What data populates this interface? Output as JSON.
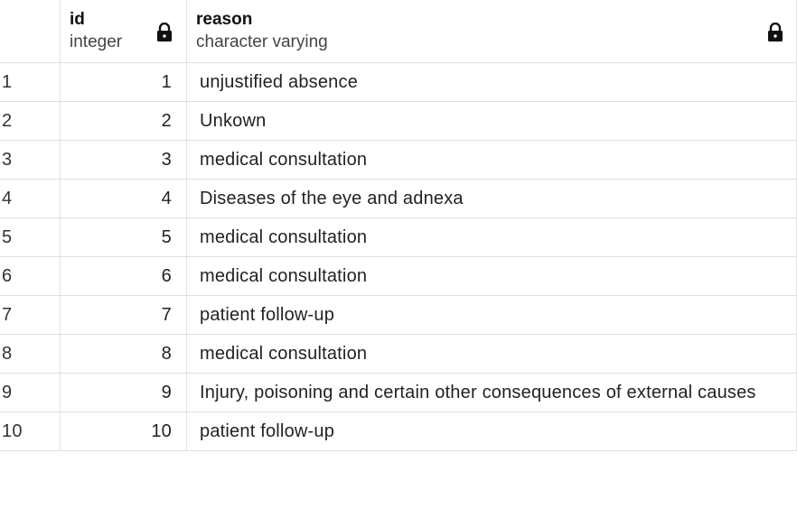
{
  "columns": {
    "id": {
      "name": "id",
      "type": "integer",
      "icon": "lock-icon"
    },
    "reason": {
      "name": "reason",
      "type": "character varying",
      "icon": "lock-icon"
    }
  },
  "rows": [
    {
      "rownum": "1",
      "id": "1",
      "reason": "unjustified absence"
    },
    {
      "rownum": "2",
      "id": "2",
      "reason": "Unkown"
    },
    {
      "rownum": "3",
      "id": "3",
      "reason": "medical consultation"
    },
    {
      "rownum": "4",
      "id": "4",
      "reason": "Diseases of the eye and adnexa"
    },
    {
      "rownum": "5",
      "id": "5",
      "reason": "medical consultation"
    },
    {
      "rownum": "6",
      "id": "6",
      "reason": "medical consultation"
    },
    {
      "rownum": "7",
      "id": "7",
      "reason": "patient follow-up"
    },
    {
      "rownum": "8",
      "id": "8",
      "reason": "medical consultation"
    },
    {
      "rownum": "9",
      "id": "9",
      "reason": "Injury, poisoning and certain other consequences of external causes"
    },
    {
      "rownum": "10",
      "id": "10",
      "reason": "patient follow-up"
    }
  ]
}
